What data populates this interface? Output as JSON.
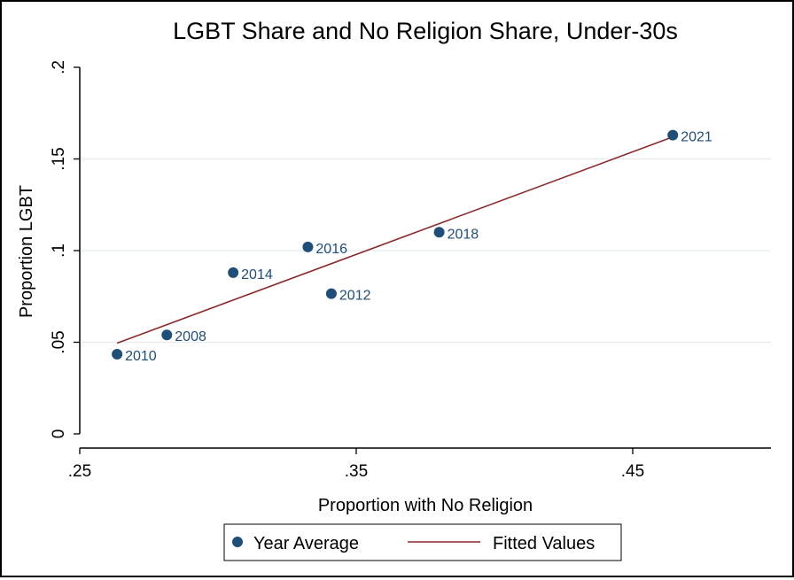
{
  "chart_data": {
    "type": "scatter",
    "title": "LGBT Share and No Religion Share, Under-30s",
    "xlabel": "Proportion with No Religion",
    "ylabel": "Proportion LGBT",
    "xlim": [
      0.25,
      0.5
    ],
    "ylim": [
      0,
      0.2
    ],
    "x_ticks": [
      0.25,
      0.35,
      0.45
    ],
    "x_tick_labels": [
      ".25",
      ".35",
      ".45"
    ],
    "y_ticks": [
      0,
      0.05,
      0.1,
      0.15,
      0.2
    ],
    "y_tick_labels": [
      "0",
      ".05",
      ".1",
      ".15",
      ".2"
    ],
    "grid": true,
    "legend_position": "bottom",
    "series": [
      {
        "name": "Year Average",
        "kind": "scatter",
        "color": "#1f4e79",
        "points": [
          {
            "label": "2008",
            "x": 0.2815,
            "y": 0.054
          },
          {
            "label": "2010",
            "x": 0.2635,
            "y": 0.0435
          },
          {
            "label": "2012",
            "x": 0.341,
            "y": 0.0765
          },
          {
            "label": "2014",
            "x": 0.3055,
            "y": 0.088
          },
          {
            "label": "2016",
            "x": 0.3325,
            "y": 0.102
          },
          {
            "label": "2018",
            "x": 0.38,
            "y": 0.11
          },
          {
            "label": "2021",
            "x": 0.4645,
            "y": 0.163
          }
        ]
      },
      {
        "name": "Fitted Values",
        "kind": "line",
        "color": "#8b2a2a",
        "x": [
          0.2635,
          0.4645
        ],
        "y": [
          0.0495,
          0.162
        ]
      }
    ]
  }
}
